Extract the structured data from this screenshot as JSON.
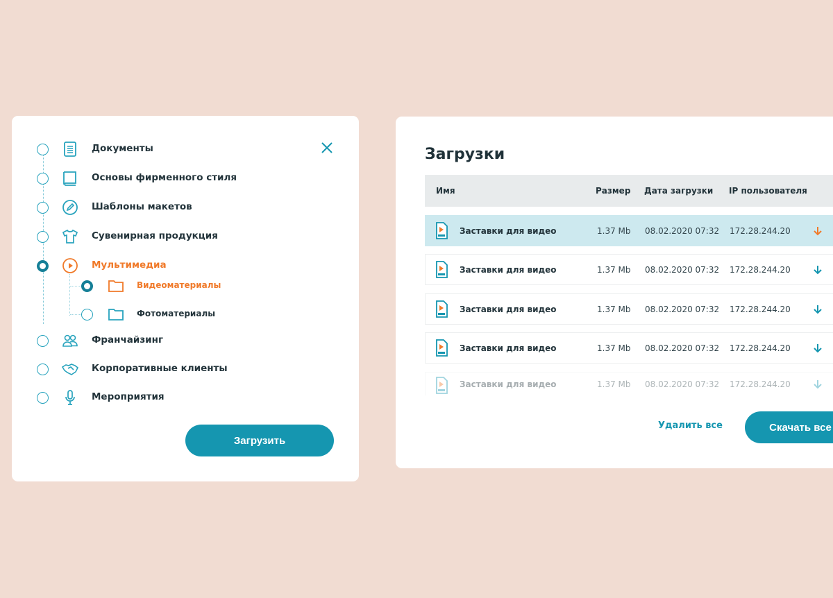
{
  "tree": {
    "items": [
      {
        "label": "Документы",
        "icon": "document-icon",
        "selected": false
      },
      {
        "label": "Основы фирменного стиля",
        "icon": "book-icon",
        "selected": false
      },
      {
        "label": "Шаблоны макетов",
        "icon": "pencil-icon",
        "selected": false
      },
      {
        "label": "Сувенирная продукция",
        "icon": "tshirt-icon",
        "selected": false
      },
      {
        "label": "Мультимедиа",
        "icon": "play-icon",
        "selected": true
      },
      {
        "label": "Франчайзинг",
        "icon": "people-icon",
        "selected": false
      },
      {
        "label": "Корпоративные клиенты",
        "icon": "handshake-icon",
        "selected": false
      },
      {
        "label": "Мероприятия",
        "icon": "microphone-icon",
        "selected": false
      }
    ],
    "subitems": [
      {
        "label": "Видеоматериалы",
        "icon": "folder-icon",
        "selected": true
      },
      {
        "label": "Фотоматериалы",
        "icon": "folder-icon",
        "selected": false
      }
    ],
    "upload_button": "Загрузить"
  },
  "downloads": {
    "title": "Загрузки",
    "columns": [
      "Имя",
      "Размер",
      "Дата загрузки",
      "IP пользователя"
    ],
    "rows": [
      {
        "name": "Заставки для видео",
        "size": "1.37 Mb",
        "date": "08.02.2020 07:32",
        "ip": "172.28.244.20"
      },
      {
        "name": "Заставки для видео",
        "size": "1.37 Mb",
        "date": "08.02.2020 07:32",
        "ip": "172.28.244.20"
      },
      {
        "name": "Заставки для видео",
        "size": "1.37 Mb",
        "date": "08.02.2020 07:32",
        "ip": "172.28.244.20"
      },
      {
        "name": "Заставки для видео",
        "size": "1.37 Mb",
        "date": "08.02.2020 07:32",
        "ip": "172.28.244.20"
      },
      {
        "name": "Заставки для видео",
        "size": "1.37 Mb",
        "date": "08.02.2020 07:32",
        "ip": "172.28.244.20"
      }
    ],
    "delete_all": "Удалить все",
    "download_all": "Скачать все"
  },
  "colors": {
    "accent": "#1596b0",
    "active": "#f07a2a",
    "background": "#f1dcd2",
    "highlight": "#cde9ef"
  }
}
